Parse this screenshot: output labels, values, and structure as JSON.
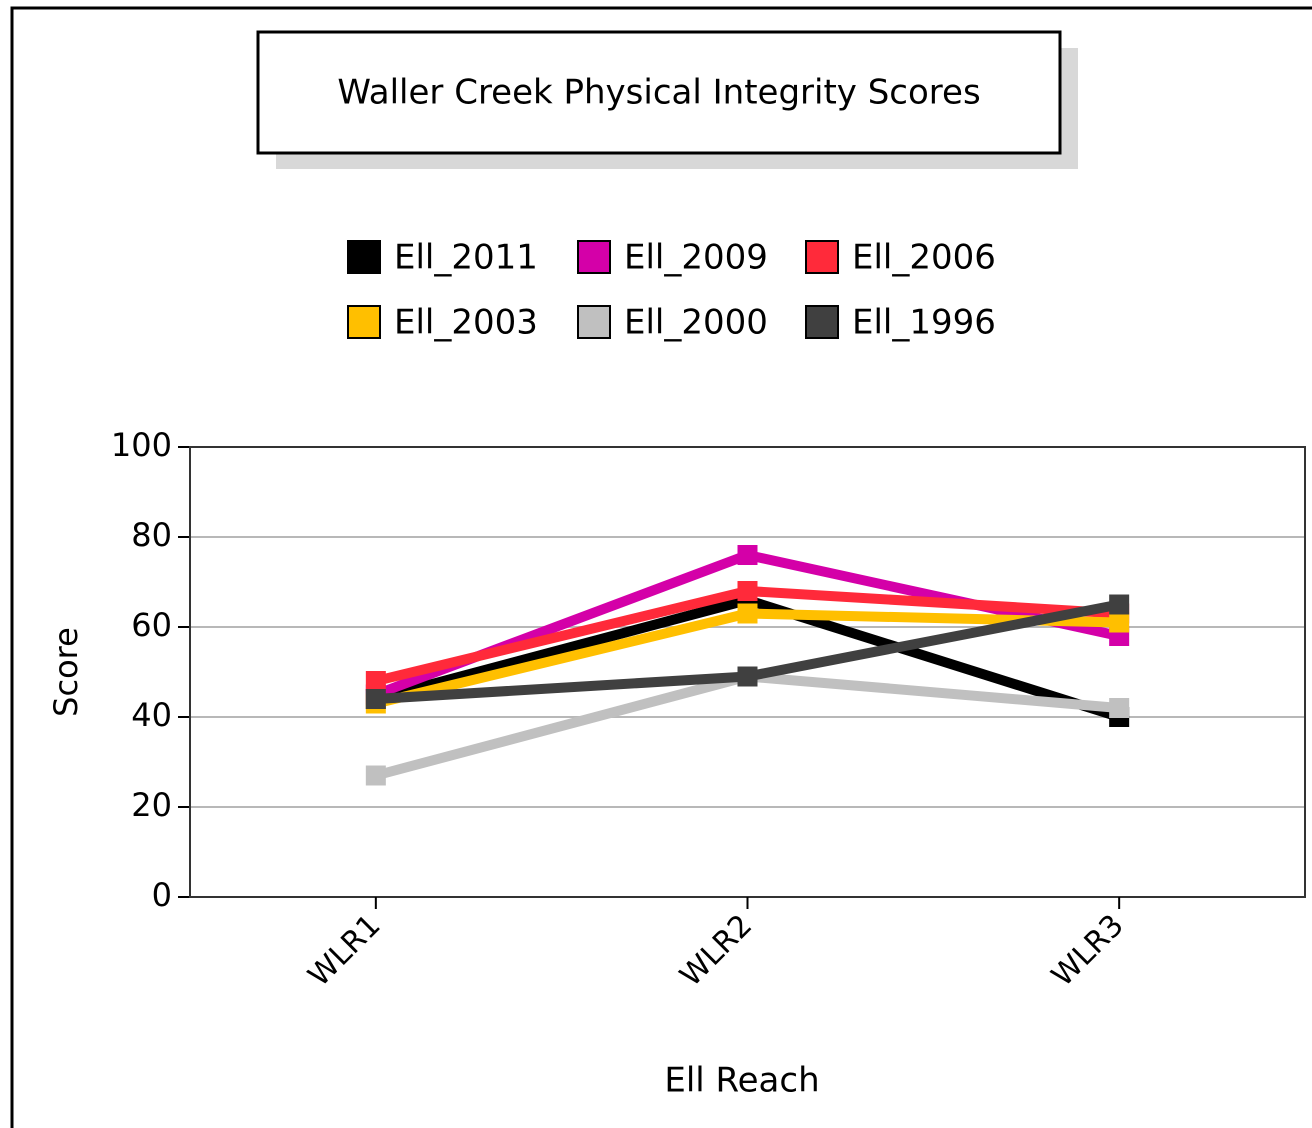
{
  "chart_data": {
    "type": "line",
    "title": "Waller Creek Physical Integrity Scores",
    "x_label": "Ell Reach",
    "y_label": "Score",
    "categories": [
      "WLR1",
      "WLR2",
      "WLR3"
    ],
    "series": [
      {
        "name": "Ell_2011",
        "color": "#000000",
        "values": [
          44,
          66,
          40
        ]
      },
      {
        "name": "Ell_2009",
        "color": "#d400a8",
        "values": [
          45,
          76,
          58
        ]
      },
      {
        "name": "Ell_2006",
        "color": "#ff2a3a",
        "values": [
          48,
          68,
          63
        ]
      },
      {
        "name": "Ell_2003",
        "color": "#ffbf00",
        "values": [
          43,
          63,
          61
        ]
      },
      {
        "name": "Ell_2000",
        "color": "#c0c0c0",
        "values": [
          27,
          49,
          42
        ]
      },
      {
        "name": "Ell_1996",
        "color": "#404040",
        "values": [
          44,
          49,
          65
        ]
      }
    ],
    "ylim": [
      0,
      100
    ],
    "yticks": [
      0,
      20,
      40,
      60,
      80,
      100
    ],
    "grid": true,
    "legend": "top"
  }
}
